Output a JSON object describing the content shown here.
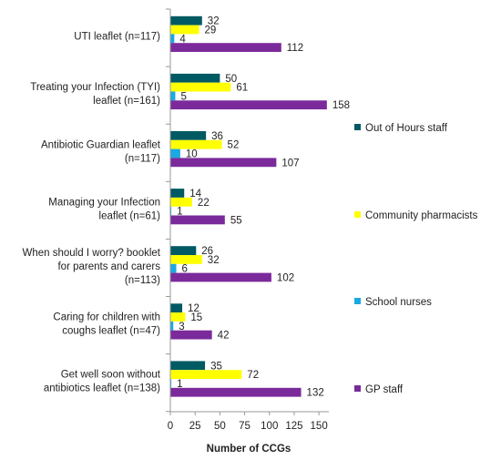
{
  "chart_data": {
    "type": "bar",
    "orientation": "horizontal",
    "title": "",
    "xlabel": "Number of CCGs",
    "ylabel": "",
    "xlim": [
      0,
      160
    ],
    "xticks": [
      0,
      25,
      50,
      75,
      100,
      125,
      150
    ],
    "grid": false,
    "legend_position": "right",
    "categories": [
      [
        "UTI leaflet (n=117)"
      ],
      [
        "Treating your Infection (TYI)",
        "leaflet (n=161)"
      ],
      [
        "Antibiotic Guardian leaflet",
        "(n=117)"
      ],
      [
        "Managing your Infection",
        "leaflet (n=61)"
      ],
      [
        "When should I worry? booklet",
        "for parents and carers",
        "(n=113)"
      ],
      [
        "Caring for children with",
        "coughs leaflet (n=47)"
      ],
      [
        "Get well soon without",
        "antibiotics leaflet (n=138)"
      ]
    ],
    "series": [
      {
        "name": "Out of Hours staff",
        "color": "#005a63",
        "values": [
          32,
          50,
          36,
          14,
          26,
          12,
          35
        ]
      },
      {
        "name": "Community pharmacists",
        "color": "#ffff00",
        "values": [
          29,
          61,
          52,
          22,
          32,
          15,
          72
        ]
      },
      {
        "name": "School nurses",
        "color": "#1ca9e1",
        "values": [
          4,
          5,
          10,
          1,
          6,
          3,
          1
        ]
      },
      {
        "name": "GP staff",
        "color": "#7b2a9b",
        "values": [
          112,
          158,
          107,
          55,
          102,
          42,
          132
        ]
      }
    ]
  }
}
